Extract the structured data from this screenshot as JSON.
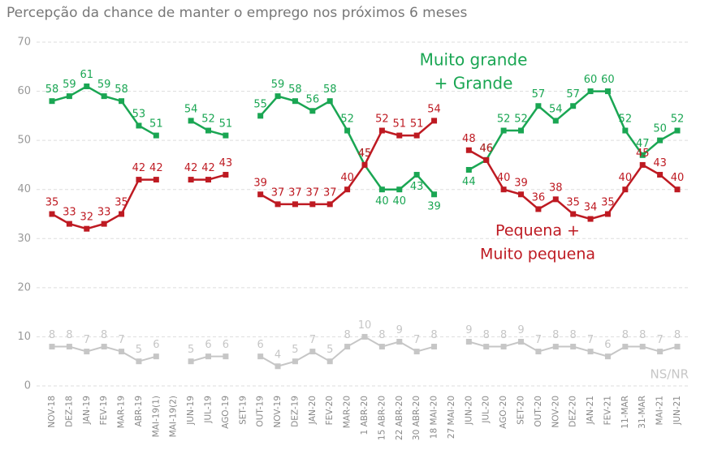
{
  "chart_data": {
    "type": "line",
    "title": "Percepção da chance de manter o emprego nos próximos 6 meses",
    "categories": [
      "NOV-18",
      "DEZ-18",
      "JAN-19",
      "FEV-19",
      "MAR-19",
      "ABR-19",
      "MAI-19(1)",
      "MAI-19(2)",
      "JUN-19",
      "JUL-19",
      "AGO-19",
      "SET-19",
      "OUT-19",
      "NOV-19",
      "DEZ-19",
      "JAN-20",
      "FEV-20",
      "MAR-20",
      "1 ABR-20",
      "15 ABR-20",
      "22 ABR-20",
      "30 ABR-20",
      "18 MAI-20",
      "27 MAI-20",
      "JUN-20",
      "JUL-20",
      "AGO-20",
      "SET-20",
      "OUT-20",
      "NOV-20",
      "DEZ-20",
      "JAN-21",
      "FEV-21",
      "11-MAR",
      "31-MAR",
      "MAI-21",
      "JUN-21"
    ],
    "series": [
      {
        "name": [
          "Muito grande",
          "+ Grande"
        ],
        "color": "#1aa653",
        "values": [
          58,
          59,
          61,
          59,
          58,
          53,
          51,
          null,
          54,
          52,
          51,
          null,
          55,
          59,
          58,
          56,
          58,
          52,
          45,
          40,
          40,
          43,
          39,
          null,
          44,
          46,
          52,
          52,
          57,
          54,
          57,
          60,
          60,
          52,
          47,
          50,
          52
        ]
      },
      {
        "name": [
          "Pequena +",
          "Muito pequena"
        ],
        "color": "#be1a22",
        "values": [
          35,
          33,
          32,
          33,
          35,
          42,
          42,
          null,
          42,
          42,
          43,
          null,
          39,
          37,
          37,
          37,
          37,
          40,
          45,
          52,
          51,
          51,
          54,
          null,
          48,
          46,
          40,
          39,
          36,
          38,
          35,
          34,
          35,
          40,
          45,
          43,
          40
        ]
      },
      {
        "name": [
          "NS/NR"
        ],
        "color": "#c6c6c6",
        "values": [
          8,
          8,
          7,
          8,
          7,
          5,
          6,
          null,
          5,
          6,
          6,
          null,
          6,
          4,
          5,
          7,
          5,
          8,
          10,
          8,
          9,
          7,
          8,
          null,
          9,
          8,
          8,
          9,
          7,
          8,
          8,
          7,
          6,
          8,
          8,
          7,
          8
        ]
      }
    ],
    "ylim": [
      0,
      70
    ],
    "yticks": [
      0,
      10,
      20,
      30,
      40,
      50,
      60,
      70
    ],
    "grid": true
  }
}
